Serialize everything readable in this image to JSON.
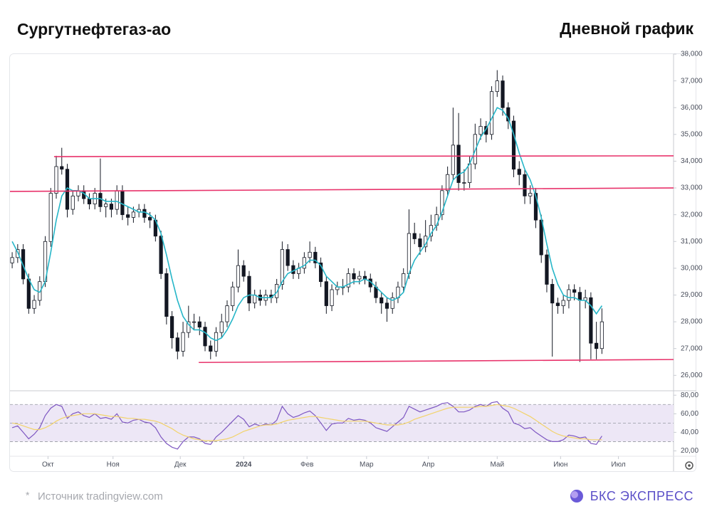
{
  "header": {
    "title": "Сургутнефтегаз-ао",
    "subtitle": "Дневной график"
  },
  "footer": {
    "note": "*",
    "source": "Источник tradingview.com",
    "brand": "БКС ЭКСПРЕСС"
  },
  "chart_data": [
    {
      "type": "candlestick",
      "xlim": [
        -0.4,
        120
      ],
      "xticks": [
        {
          "value": 6.5,
          "label": "Окт"
        },
        {
          "value": 18.3,
          "label": "Ноя"
        },
        {
          "value": 30.5,
          "label": "Дек"
        },
        {
          "value": 42,
          "label": "2024"
        },
        {
          "value": 53.5,
          "label": "Фев"
        },
        {
          "value": 64.3,
          "label": "Мар"
        },
        {
          "value": 75.5,
          "label": "Апр"
        },
        {
          "value": 88,
          "label": "Май"
        },
        {
          "value": 99.5,
          "label": "Июн"
        },
        {
          "value": 110,
          "label": "Июл"
        }
      ],
      "ylim": [
        25450,
        38000
      ],
      "yticks": [
        {
          "value": 26000,
          "label": "26,000"
        },
        {
          "value": 27000,
          "label": "27,000"
        },
        {
          "value": 28000,
          "label": "28,000"
        },
        {
          "value": 29000,
          "label": "29,000"
        },
        {
          "value": 30000,
          "label": "30,000"
        },
        {
          "value": 31000,
          "label": "31,000"
        },
        {
          "value": 32000,
          "label": "32,000"
        },
        {
          "value": 33000,
          "label": "33,000"
        },
        {
          "value": 34000,
          "label": "34,000"
        },
        {
          "value": 35000,
          "label": "35,000"
        },
        {
          "value": 36000,
          "label": "36,000"
        },
        {
          "value": 37000,
          "label": "37,000"
        },
        {
          "value": 38000,
          "label": "38,000"
        }
      ],
      "up_color": "#ffffff",
      "down_color": "#131722",
      "wick_color": "#131722",
      "open": [
        30200,
        30400,
        30700,
        29600,
        28500,
        28800,
        29500,
        31000,
        32800,
        33800,
        33700,
        32200,
        32700,
        32900,
        32600,
        32400,
        32800,
        32300,
        32400,
        32200,
        32900,
        32000,
        31900,
        32100,
        32200,
        31900,
        31800,
        31200,
        29800,
        28200,
        27400,
        26900,
        27600,
        28000,
        28000,
        27800,
        27100,
        26900,
        27600,
        28000,
        28600,
        29300,
        30100,
        29700,
        28700,
        29000,
        28800,
        29000,
        28900,
        29400,
        30700,
        30100,
        29800,
        30000,
        30400,
        30600,
        30200,
        29500,
        28600,
        29200,
        29300,
        29300,
        29800,
        29600,
        29700,
        29600,
        29300,
        28900,
        28700,
        28500,
        28900,
        29300,
        29800,
        31300,
        31100,
        30800,
        31200,
        31600,
        32000,
        32900,
        33500,
        34600,
        33200,
        33200,
        33900,
        35000,
        35300,
        35000,
        36600,
        37000,
        36000,
        35500,
        33700,
        33500,
        32700,
        32800,
        31800,
        30500,
        29400,
        28700,
        28600,
        28800,
        29200,
        29100,
        28800,
        28900,
        27200,
        27000
      ],
      "high": [
        30600,
        30900,
        30900,
        29800,
        29000,
        29700,
        31200,
        33000,
        34200,
        34500,
        33900,
        32900,
        33100,
        33100,
        32800,
        33000,
        34100,
        32600,
        32600,
        33100,
        33100,
        32300,
        32300,
        32400,
        32400,
        32100,
        32000,
        31400,
        30000,
        28400,
        27600,
        28000,
        28600,
        28300,
        28200,
        28000,
        27300,
        27800,
        28300,
        28800,
        29500,
        30700,
        30300,
        29900,
        29200,
        29200,
        29200,
        29200,
        29600,
        31000,
        30900,
        30300,
        30200,
        30600,
        31000,
        30800,
        30400,
        29700,
        29400,
        29500,
        29600,
        30000,
        30000,
        29900,
        29900,
        29800,
        29500,
        29100,
        28900,
        29100,
        29500,
        30000,
        32200,
        31700,
        31300,
        31800,
        32000,
        32300,
        33100,
        33800,
        36000,
        35800,
        33700,
        34200,
        35400,
        35600,
        35500,
        36800,
        37400,
        37200,
        36200,
        35700,
        34000,
        33700,
        33100,
        33000,
        32000,
        30700,
        29600,
        28900,
        29000,
        29400,
        29400,
        29300,
        29200,
        29100,
        28000,
        28500
      ],
      "low": [
        30000,
        30200,
        29400,
        28300,
        28300,
        28600,
        29300,
        30800,
        32600,
        33500,
        31900,
        32000,
        32500,
        32400,
        32200,
        32200,
        32100,
        31900,
        31900,
        32000,
        31800,
        31600,
        31700,
        31900,
        31700,
        31500,
        31000,
        29600,
        27900,
        27000,
        26600,
        26700,
        27400,
        27700,
        27500,
        26900,
        26600,
        26700,
        27400,
        27800,
        28400,
        29100,
        29500,
        28400,
        28500,
        28600,
        28600,
        28700,
        28700,
        29200,
        29900,
        29600,
        29600,
        29800,
        30200,
        30000,
        29300,
        28300,
        28400,
        29000,
        29000,
        29100,
        29400,
        29400,
        29400,
        29100,
        28700,
        28300,
        28000,
        28300,
        28700,
        29100,
        29600,
        30900,
        30500,
        30600,
        31000,
        31400,
        31800,
        32700,
        33300,
        32900,
        32900,
        33000,
        33700,
        34800,
        34700,
        34800,
        36400,
        35700,
        35200,
        33400,
        33100,
        32400,
        32400,
        31500,
        30200,
        29100,
        26700,
        28300,
        28300,
        28500,
        28800,
        26500,
        28500,
        26600,
        26600,
        26800
      ],
      "close": [
        30400,
        30700,
        29600,
        28500,
        28800,
        29500,
        31000,
        32800,
        33800,
        33700,
        32200,
        32700,
        32900,
        32600,
        32400,
        32800,
        32300,
        32400,
        32200,
        32900,
        32000,
        31900,
        32100,
        32200,
        31900,
        31800,
        31200,
        29800,
        28200,
        27400,
        26900,
        27600,
        28000,
        28000,
        27800,
        27100,
        26900,
        27600,
        28000,
        28600,
        29300,
        30100,
        29700,
        28700,
        29000,
        28800,
        29000,
        28900,
        29400,
        30700,
        30100,
        29800,
        30000,
        30400,
        30600,
        30200,
        29500,
        28600,
        29200,
        29300,
        29300,
        29800,
        29600,
        29700,
        29600,
        29300,
        28900,
        28700,
        28500,
        28900,
        29300,
        29800,
        31300,
        31100,
        30800,
        31200,
        31600,
        32000,
        32900,
        33500,
        34600,
        33200,
        33200,
        33900,
        35000,
        35300,
        35000,
        36600,
        37000,
        36000,
        35500,
        33700,
        33500,
        32700,
        32800,
        31800,
        30500,
        29400,
        28700,
        28600,
        28800,
        29200,
        29100,
        28800,
        28900,
        27200,
        27000,
        28000
      ],
      "ma": {
        "color": "#26b6c8",
        "values": [
          31000,
          30600,
          30100,
          29600,
          29200,
          29100,
          29500,
          30600,
          31800,
          32700,
          33000,
          32900,
          32900,
          32800,
          32600,
          32600,
          32600,
          32500,
          32500,
          32500,
          32400,
          32300,
          32200,
          32100,
          32100,
          32000,
          31800,
          31300,
          30500,
          29600,
          28800,
          28200,
          27900,
          27700,
          27700,
          27600,
          27400,
          27300,
          27400,
          27700,
          28100,
          28600,
          28900,
          29000,
          29000,
          28900,
          28900,
          28900,
          29100,
          29500,
          29800,
          29900,
          30000,
          30100,
          30300,
          30300,
          30100,
          29700,
          29500,
          29300,
          29300,
          29400,
          29500,
          29500,
          29600,
          29500,
          29300,
          29100,
          28900,
          28800,
          28900,
          29100,
          29800,
          30300,
          30600,
          30900,
          31300,
          31600,
          32100,
          32700,
          33300,
          33500,
          33600,
          33900,
          34400,
          34900,
          35200,
          35600,
          36000,
          35900,
          35600,
          35000,
          34300,
          33700,
          33300,
          32700,
          31900,
          30900,
          30000,
          29400,
          29000,
          28900,
          28900,
          28800,
          28800,
          28600,
          28300,
          28600
        ]
      },
      "levels": [
        {
          "color": "#e8336b",
          "x": [
            -0.4,
            120
          ],
          "y": [
            32870,
            33000
          ]
        },
        {
          "color": "#e8336b",
          "x": [
            7.6,
            120
          ],
          "y": [
            34170,
            34200
          ]
        },
        {
          "color": "#e8336b",
          "x": [
            33.85,
            120
          ],
          "y": [
            26480,
            26590
          ]
        }
      ]
    },
    {
      "type": "line",
      "xlim": [
        -0.4,
        120
      ],
      "ylim": [
        15,
        84
      ],
      "yticks": [
        {
          "value": 20,
          "label": "20,00"
        },
        {
          "value": 40,
          "label": "40,00"
        },
        {
          "value": 60,
          "label": "60,00"
        },
        {
          "value": 80,
          "label": "80,00"
        }
      ],
      "band": [
        30,
        70
      ],
      "band_color": "#ede7f6",
      "guides": [
        30,
        50,
        70
      ],
      "series": [
        {
          "color": "#7e57c2",
          "values": [
            45,
            47,
            40,
            33,
            38,
            45,
            58,
            66,
            70,
            68,
            55,
            60,
            62,
            58,
            56,
            60,
            55,
            56,
            54,
            60,
            51,
            50,
            53,
            54,
            51,
            50,
            45,
            35,
            28,
            24,
            22,
            30,
            35,
            35,
            33,
            28,
            27,
            35,
            40,
            46,
            52,
            58,
            54,
            46,
            49,
            47,
            49,
            48,
            53,
            68,
            60,
            56,
            58,
            61,
            63,
            58,
            50,
            42,
            49,
            50,
            50,
            55,
            53,
            54,
            53,
            50,
            45,
            43,
            41,
            46,
            51,
            56,
            68,
            65,
            62,
            64,
            66,
            68,
            71,
            72,
            68,
            62,
            62,
            64,
            68,
            70,
            68,
            72,
            73,
            66,
            62,
            50,
            48,
            44,
            45,
            40,
            36,
            32,
            30,
            30,
            32,
            37,
            36,
            34,
            35,
            28,
            27,
            36
          ]
        },
        {
          "color": "#f2d36b",
          "values": [
            50,
            49,
            47,
            45,
            43,
            43,
            45,
            48,
            52,
            55,
            57,
            58,
            59,
            60,
            60,
            60,
            59,
            58,
            57,
            57,
            56,
            55,
            55,
            54,
            54,
            53,
            52,
            50,
            47,
            44,
            40,
            37,
            35,
            33,
            32,
            31,
            31,
            31,
            32,
            33,
            35,
            38,
            41,
            43,
            45,
            47,
            48,
            48,
            49,
            51,
            53,
            54,
            55,
            56,
            57,
            57,
            56,
            55,
            54,
            53,
            52,
            52,
            52,
            52,
            52,
            51,
            50,
            49,
            48,
            48,
            48,
            49,
            51,
            54,
            56,
            58,
            60,
            62,
            64,
            66,
            67,
            67,
            67,
            67,
            67,
            68,
            68,
            69,
            70,
            69,
            68,
            66,
            63,
            60,
            57,
            53,
            49,
            45,
            41,
            38,
            36,
            35,
            34,
            33,
            33,
            32,
            32,
            32
          ]
        }
      ]
    }
  ]
}
